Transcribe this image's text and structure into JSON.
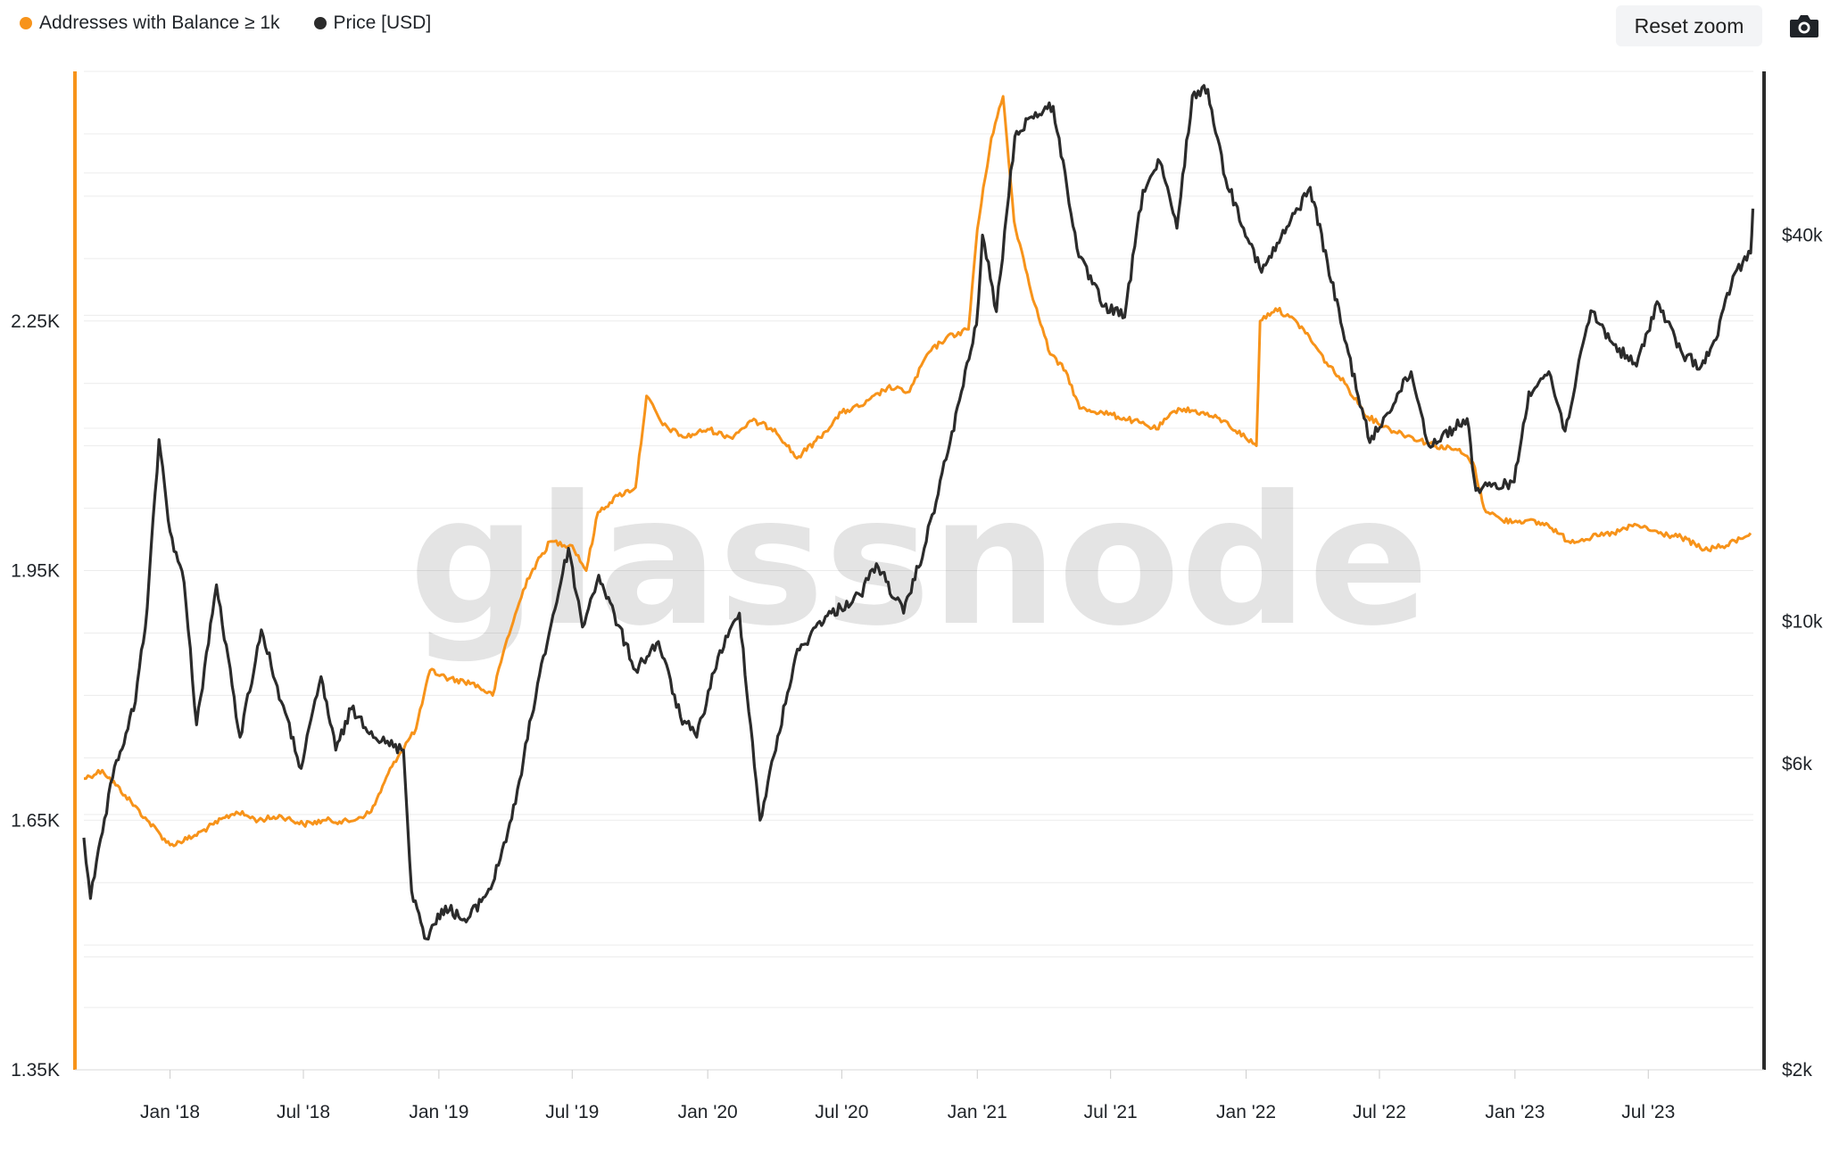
{
  "legend": [
    {
      "label": "Addresses with Balance ≥ 1k",
      "color": "#f7931a"
    },
    {
      "label": "Price [USD]",
      "color": "#2b2b2b"
    }
  ],
  "toolbar": {
    "reset_zoom_label": "Reset zoom",
    "export_icon": "camera-icon"
  },
  "watermark": "glassnode",
  "chart_data": {
    "type": "line",
    "x_ticks": [
      "Jan '18",
      "Jul '18",
      "Jan '19",
      "Jul '19",
      "Jan '20",
      "Jul '20",
      "Jan '21",
      "Jul '21",
      "Jan '22",
      "Jul '22",
      "Jan '23",
      "Jul '23"
    ],
    "xlim": [
      "2017-09-06",
      "2023-11-17"
    ],
    "y_left": {
      "ticks": [
        "1.35K",
        "1.65K",
        "1.95K",
        "2.25K"
      ],
      "tick_values": [
        1350,
        1650,
        1950,
        2250
      ],
      "range": [
        1350,
        2550
      ],
      "color": "#f7931a"
    },
    "y_right": {
      "ticks": [
        "$2k",
        "$6k",
        "$10k",
        "$40k"
      ],
      "tick_values": [
        2000,
        6000,
        10000,
        40000
      ],
      "range": [
        2000,
        72000
      ],
      "scale": "log",
      "color": "#2b2b2b"
    },
    "series": [
      {
        "name": "Addresses with Balance ≥ 1k",
        "axis": "left",
        "color": "#f7931a",
        "points": [
          [
            "2017-09-06",
            1700
          ],
          [
            "2017-10-01",
            1710
          ],
          [
            "2017-11-01",
            1680
          ],
          [
            "2017-12-01",
            1650
          ],
          [
            "2018-01-01",
            1620
          ],
          [
            "2018-02-01",
            1630
          ],
          [
            "2018-03-01",
            1645
          ],
          [
            "2018-04-01",
            1660
          ],
          [
            "2018-05-01",
            1650
          ],
          [
            "2018-06-01",
            1655
          ],
          [
            "2018-07-01",
            1645
          ],
          [
            "2018-08-01",
            1650
          ],
          [
            "2018-09-01",
            1648
          ],
          [
            "2018-10-01",
            1660
          ],
          [
            "2018-11-01",
            1720
          ],
          [
            "2018-12-01",
            1760
          ],
          [
            "2018-12-20",
            1830
          ],
          [
            "2019-01-15",
            1820
          ],
          [
            "2019-02-15",
            1815
          ],
          [
            "2019-03-15",
            1800
          ],
          [
            "2019-04-01",
            1860
          ],
          [
            "2019-05-01",
            1940
          ],
          [
            "2019-06-01",
            1985
          ],
          [
            "2019-07-01",
            1980
          ],
          [
            "2019-07-20",
            1950
          ],
          [
            "2019-08-05",
            2020
          ],
          [
            "2019-09-01",
            2040
          ],
          [
            "2019-09-25",
            2050
          ],
          [
            "2019-10-10",
            2160
          ],
          [
            "2019-11-01",
            2125
          ],
          [
            "2019-12-01",
            2110
          ],
          [
            "2020-01-01",
            2120
          ],
          [
            "2020-02-01",
            2110
          ],
          [
            "2020-03-01",
            2130
          ],
          [
            "2020-04-01",
            2120
          ],
          [
            "2020-05-01",
            2085
          ],
          [
            "2020-06-01",
            2110
          ],
          [
            "2020-07-01",
            2140
          ],
          [
            "2020-08-01",
            2150
          ],
          [
            "2020-09-01",
            2170
          ],
          [
            "2020-10-01",
            2165
          ],
          [
            "2020-10-25",
            2210
          ],
          [
            "2020-11-20",
            2230
          ],
          [
            "2020-12-20",
            2240
          ],
          [
            "2021-01-01",
            2360
          ],
          [
            "2021-01-20",
            2470
          ],
          [
            "2021-02-05",
            2520
          ],
          [
            "2021-02-20",
            2370
          ],
          [
            "2021-03-20",
            2270
          ],
          [
            "2021-04-10",
            2210
          ],
          [
            "2021-05-01",
            2190
          ],
          [
            "2021-05-20",
            2145
          ],
          [
            "2021-06-20",
            2140
          ],
          [
            "2021-08-01",
            2130
          ],
          [
            "2021-09-01",
            2120
          ],
          [
            "2021-10-01",
            2145
          ],
          [
            "2021-11-01",
            2140
          ],
          [
            "2021-12-01",
            2130
          ],
          [
            "2021-12-31",
            2110
          ],
          [
            "2022-01-15",
            2100
          ],
          [
            "2022-01-20",
            2250
          ],
          [
            "2022-02-10",
            2265
          ],
          [
            "2022-03-01",
            2255
          ],
          [
            "2022-03-20",
            2240
          ],
          [
            "2022-04-20",
            2200
          ],
          [
            "2022-05-15",
            2175
          ],
          [
            "2022-06-15",
            2135
          ],
          [
            "2022-07-15",
            2120
          ],
          [
            "2022-08-15",
            2110
          ],
          [
            "2022-09-15",
            2100
          ],
          [
            "2022-10-15",
            2095
          ],
          [
            "2022-11-05",
            2080
          ],
          [
            "2022-11-20",
            2025
          ],
          [
            "2022-12-15",
            2010
          ],
          [
            "2023-01-15",
            2010
          ],
          [
            "2023-02-15",
            2005
          ],
          [
            "2023-03-15",
            1985
          ],
          [
            "2023-04-15",
            1990
          ],
          [
            "2023-05-15",
            1995
          ],
          [
            "2023-06-15",
            2005
          ],
          [
            "2023-07-15",
            1995
          ],
          [
            "2023-08-15",
            1990
          ],
          [
            "2023-09-15",
            1975
          ],
          [
            "2023-10-15",
            1980
          ],
          [
            "2023-11-17",
            1995
          ]
        ]
      },
      {
        "name": "Price [USD]",
        "axis": "right",
        "color": "#2b2b2b",
        "points": [
          [
            "2017-09-06",
            4600
          ],
          [
            "2017-09-15",
            3700
          ],
          [
            "2017-10-15",
            5700
          ],
          [
            "2017-11-15",
            7500
          ],
          [
            "2017-12-01",
            10500
          ],
          [
            "2017-12-17",
            19200
          ],
          [
            "2018-01-01",
            13800
          ],
          [
            "2018-01-20",
            11500
          ],
          [
            "2018-02-06",
            6900
          ],
          [
            "2018-03-05",
            11400
          ],
          [
            "2018-04-06",
            6600
          ],
          [
            "2018-05-05",
            9700
          ],
          [
            "2018-06-01",
            7500
          ],
          [
            "2018-06-28",
            5900
          ],
          [
            "2018-07-25",
            8200
          ],
          [
            "2018-08-14",
            6300
          ],
          [
            "2018-09-04",
            7300
          ],
          [
            "2018-10-15",
            6500
          ],
          [
            "2018-11-14",
            6300
          ],
          [
            "2018-11-25",
            3800
          ],
          [
            "2018-12-15",
            3200
          ],
          [
            "2019-01-10",
            3600
          ],
          [
            "2019-02-07",
            3400
          ],
          [
            "2019-03-15",
            3900
          ],
          [
            "2019-04-15",
            5200
          ],
          [
            "2019-05-15",
            8000
          ],
          [
            "2019-06-26",
            13000
          ],
          [
            "2019-07-15",
            9800
          ],
          [
            "2019-08-06",
            11800
          ],
          [
            "2019-09-25",
            8400
          ],
          [
            "2019-10-26",
            9300
          ],
          [
            "2019-11-25",
            7100
          ],
          [
            "2019-12-17",
            6600
          ],
          [
            "2020-01-15",
            8800
          ],
          [
            "2020-02-13",
            10300
          ],
          [
            "2020-03-12",
            4900
          ],
          [
            "2020-04-29",
            8800
          ],
          [
            "2020-06-01",
            10000
          ],
          [
            "2020-07-26",
            11000
          ],
          [
            "2020-08-17",
            12300
          ],
          [
            "2020-09-23",
            10300
          ],
          [
            "2020-10-21",
            13000
          ],
          [
            "2020-11-25",
            19000
          ],
          [
            "2020-12-31",
            29000
          ],
          [
            "2021-01-08",
            40000
          ],
          [
            "2021-01-27",
            30400
          ],
          [
            "2021-02-21",
            57000
          ],
          [
            "2021-03-13",
            61000
          ],
          [
            "2021-04-14",
            63500
          ],
          [
            "2021-05-19",
            37000
          ],
          [
            "2021-06-22",
            31000
          ],
          [
            "2021-07-20",
            29800
          ],
          [
            "2021-08-14",
            47000
          ],
          [
            "2021-09-06",
            52000
          ],
          [
            "2021-09-29",
            41000
          ],
          [
            "2021-10-20",
            66000
          ],
          [
            "2021-11-10",
            67500
          ],
          [
            "2021-12-04",
            49000
          ],
          [
            "2022-01-22",
            35000
          ],
          [
            "2022-03-29",
            47500
          ],
          [
            "2022-05-12",
            28500
          ],
          [
            "2022-06-18",
            19000
          ],
          [
            "2022-08-13",
            24500
          ],
          [
            "2022-09-06",
            18800
          ],
          [
            "2022-10-28",
            20700
          ],
          [
            "2022-11-09",
            16000
          ],
          [
            "2022-12-31",
            16500
          ],
          [
            "2023-01-20",
            22800
          ],
          [
            "2023-02-16",
            24500
          ],
          [
            "2023-03-10",
            19800
          ],
          [
            "2023-04-14",
            30500
          ],
          [
            "2023-05-15",
            27000
          ],
          [
            "2023-06-15",
            25000
          ],
          [
            "2023-07-13",
            31500
          ],
          [
            "2023-08-17",
            26000
          ],
          [
            "2023-09-11",
            25000
          ],
          [
            "2023-10-01",
            27500
          ],
          [
            "2023-10-24",
            34500
          ],
          [
            "2023-11-17",
            37500
          ],
          [
            "2023-11-20",
            44000
          ]
        ]
      }
    ]
  }
}
